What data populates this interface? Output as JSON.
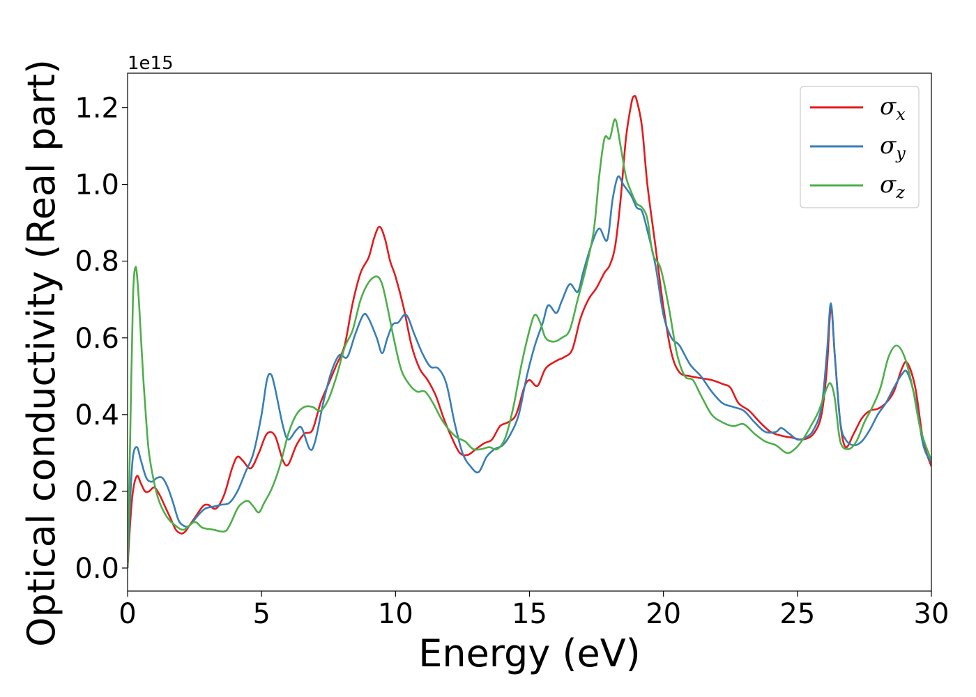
{
  "chart_data": {
    "type": "line",
    "xlabel": "Energy (eV)",
    "ylabel": "Optical conductivity (Real part)",
    "y_offset_label": "1e15",
    "xlim": [
      0,
      30
    ],
    "ylim": [
      -0.06,
      1.29
    ],
    "xticks": [
      0,
      5,
      10,
      15,
      20,
      25,
      30
    ],
    "xtick_labels": [
      "0",
      "5",
      "10",
      "15",
      "20",
      "25",
      "30"
    ],
    "yticks": [
      0.0,
      0.2,
      0.4,
      0.6,
      0.8,
      1.0,
      1.2
    ],
    "ytick_labels": [
      "0.0",
      "0.2",
      "0.4",
      "0.6",
      "0.8",
      "1.0",
      "1.2"
    ],
    "grid": false,
    "legend_position": "top-right",
    "series": [
      {
        "name": "σx",
        "symbol": "σ",
        "subscript": "x",
        "color": "#e41a1c",
        "x": [
          0,
          0.1,
          0.2,
          0.35,
          0.5,
          0.65,
          0.8,
          1.0,
          1.2,
          1.4,
          1.6,
          1.8,
          2.0,
          2.15,
          2.3,
          2.5,
          2.8,
          3.0,
          3.3,
          3.6,
          3.9,
          4.1,
          4.3,
          4.6,
          4.9,
          5.2,
          5.5,
          5.8,
          6.0,
          6.3,
          6.6,
          6.9,
          7.2,
          7.5,
          7.8,
          8.1,
          8.4,
          8.7,
          9.0,
          9.2,
          9.4,
          9.6,
          9.8,
          10.0,
          10.3,
          10.6,
          10.9,
          11.2,
          11.5,
          11.8,
          12.1,
          12.4,
          12.7,
          13.0,
          13.3,
          13.6,
          13.9,
          14.2,
          14.5,
          14.8,
          15.0,
          15.3,
          15.6,
          16.0,
          16.3,
          16.6,
          16.9,
          17.2,
          17.5,
          17.8,
          18.0,
          18.2,
          18.4,
          18.6,
          18.8,
          18.9,
          19.0,
          19.2,
          19.4,
          19.7,
          20.0,
          20.3,
          20.6,
          21.0,
          21.4,
          21.8,
          22.2,
          22.5,
          22.8,
          23.2,
          23.6,
          24.0,
          24.4,
          24.8,
          25.2,
          25.6,
          25.9,
          26.1,
          26.25,
          26.4,
          26.6,
          26.8,
          27.1,
          27.4,
          27.7,
          28.0,
          28.3,
          28.6,
          28.9,
          29.1,
          29.4,
          29.7,
          30.0
        ],
        "y": [
          0.0,
          0.12,
          0.2,
          0.24,
          0.22,
          0.2,
          0.2,
          0.21,
          0.19,
          0.16,
          0.13,
          0.1,
          0.09,
          0.095,
          0.11,
          0.13,
          0.16,
          0.165,
          0.155,
          0.19,
          0.26,
          0.29,
          0.28,
          0.26,
          0.3,
          0.35,
          0.345,
          0.28,
          0.27,
          0.32,
          0.35,
          0.36,
          0.43,
          0.48,
          0.53,
          0.58,
          0.69,
          0.77,
          0.81,
          0.86,
          0.89,
          0.86,
          0.8,
          0.76,
          0.68,
          0.58,
          0.52,
          0.49,
          0.45,
          0.39,
          0.34,
          0.3,
          0.295,
          0.31,
          0.325,
          0.335,
          0.37,
          0.38,
          0.4,
          0.47,
          0.49,
          0.475,
          0.52,
          0.54,
          0.55,
          0.57,
          0.65,
          0.7,
          0.73,
          0.77,
          0.79,
          0.84,
          0.96,
          1.12,
          1.21,
          1.23,
          1.22,
          1.15,
          1.0,
          0.84,
          0.68,
          0.56,
          0.51,
          0.5,
          0.495,
          0.49,
          0.48,
          0.47,
          0.43,
          0.41,
          0.38,
          0.355,
          0.345,
          0.34,
          0.335,
          0.35,
          0.4,
          0.52,
          0.68,
          0.55,
          0.38,
          0.315,
          0.35,
          0.39,
          0.41,
          0.415,
          0.43,
          0.46,
          0.52,
          0.535,
          0.47,
          0.33,
          0.265
        ]
      },
      {
        "name": "σy",
        "symbol": "σ",
        "subscript": "y",
        "color": "#377eb8",
        "x": [
          0,
          0.1,
          0.2,
          0.35,
          0.5,
          0.7,
          0.9,
          1.1,
          1.3,
          1.5,
          1.7,
          1.9,
          2.1,
          2.3,
          2.6,
          2.9,
          3.2,
          3.5,
          3.8,
          4.1,
          4.4,
          4.7,
          5.0,
          5.2,
          5.35,
          5.5,
          5.8,
          6.0,
          6.3,
          6.5,
          6.8,
          7.0,
          7.3,
          7.6,
          7.9,
          8.2,
          8.5,
          8.8,
          9.0,
          9.3,
          9.5,
          9.7,
          9.9,
          10.1,
          10.4,
          10.7,
          11.0,
          11.3,
          11.6,
          11.9,
          12.2,
          12.5,
          12.8,
          13.1,
          13.4,
          13.7,
          14.0,
          14.3,
          14.6,
          14.9,
          15.2,
          15.5,
          15.7,
          16.0,
          16.2,
          16.5,
          16.8,
          17.0,
          17.3,
          17.6,
          17.9,
          18.1,
          18.3,
          18.5,
          18.8,
          19.0,
          19.2,
          19.4,
          19.7,
          20.0,
          20.3,
          20.6,
          21.0,
          21.4,
          21.8,
          22.2,
          22.6,
          23.0,
          23.4,
          23.8,
          24.2,
          24.4,
          24.7,
          25.0,
          25.3,
          25.6,
          25.9,
          26.1,
          26.25,
          26.4,
          26.6,
          26.8,
          27.1,
          27.4,
          27.7,
          28.0,
          28.3,
          28.6,
          28.9,
          29.1,
          29.4,
          29.7,
          30.0
        ],
        "y": [
          0.0,
          0.18,
          0.29,
          0.315,
          0.28,
          0.235,
          0.225,
          0.235,
          0.235,
          0.21,
          0.17,
          0.125,
          0.11,
          0.11,
          0.135,
          0.155,
          0.16,
          0.165,
          0.17,
          0.2,
          0.25,
          0.3,
          0.4,
          0.49,
          0.505,
          0.47,
          0.37,
          0.335,
          0.36,
          0.365,
          0.31,
          0.33,
          0.43,
          0.51,
          0.555,
          0.55,
          0.61,
          0.66,
          0.65,
          0.6,
          0.56,
          0.6,
          0.635,
          0.64,
          0.66,
          0.61,
          0.56,
          0.525,
          0.52,
          0.48,
          0.38,
          0.3,
          0.265,
          0.25,
          0.29,
          0.31,
          0.32,
          0.35,
          0.4,
          0.5,
          0.58,
          0.64,
          0.685,
          0.665,
          0.695,
          0.74,
          0.72,
          0.77,
          0.84,
          0.885,
          0.855,
          0.96,
          1.02,
          1.0,
          0.97,
          0.94,
          0.93,
          0.88,
          0.79,
          0.66,
          0.6,
          0.58,
          0.53,
          0.5,
          0.46,
          0.43,
          0.42,
          0.41,
          0.38,
          0.355,
          0.355,
          0.365,
          0.35,
          0.335,
          0.34,
          0.36,
          0.42,
          0.56,
          0.69,
          0.55,
          0.38,
          0.335,
          0.32,
          0.33,
          0.36,
          0.4,
          0.43,
          0.47,
          0.505,
          0.51,
          0.44,
          0.32,
          0.275
        ]
      },
      {
        "name": "σz",
        "symbol": "σ",
        "subscript": "z",
        "color": "#4daf4a",
        "x": [
          0,
          0.1,
          0.2,
          0.3,
          0.4,
          0.5,
          0.6,
          0.7,
          0.8,
          1.0,
          1.2,
          1.5,
          1.8,
          2.1,
          2.5,
          2.8,
          3.2,
          3.6,
          3.8,
          4.1,
          4.3,
          4.5,
          4.7,
          4.9,
          5.1,
          5.4,
          5.7,
          6.0,
          6.3,
          6.6,
          6.9,
          7.2,
          7.5,
          7.8,
          8.1,
          8.4,
          8.7,
          9.0,
          9.3,
          9.5,
          9.7,
          9.9,
          10.2,
          10.5,
          10.8,
          11.1,
          11.4,
          11.7,
          12.0,
          12.3,
          12.6,
          12.9,
          13.2,
          13.5,
          13.8,
          14.1,
          14.4,
          14.7,
          15.0,
          15.2,
          15.4,
          15.6,
          15.9,
          16.2,
          16.5,
          16.8,
          17.1,
          17.4,
          17.6,
          17.8,
          18.0,
          18.2,
          18.4,
          18.6,
          18.8,
          19.0,
          19.2,
          19.4,
          19.6,
          19.9,
          20.2,
          20.5,
          20.8,
          21.1,
          21.4,
          21.8,
          22.2,
          22.6,
          23.0,
          23.4,
          23.8,
          24.2,
          24.6,
          24.9,
          25.2,
          25.5,
          25.8,
          26.1,
          26.25,
          26.4,
          26.6,
          26.9,
          27.2,
          27.5,
          27.8,
          28.1,
          28.4,
          28.7,
          29.0,
          29.3,
          29.6,
          30.0
        ],
        "y": [
          0.0,
          0.35,
          0.7,
          0.785,
          0.72,
          0.6,
          0.48,
          0.38,
          0.3,
          0.22,
          0.17,
          0.13,
          0.11,
          0.1,
          0.12,
          0.105,
          0.1,
          0.095,
          0.11,
          0.155,
          0.17,
          0.175,
          0.16,
          0.145,
          0.17,
          0.21,
          0.27,
          0.35,
          0.4,
          0.42,
          0.42,
          0.41,
          0.44,
          0.5,
          0.575,
          0.62,
          0.7,
          0.745,
          0.76,
          0.74,
          0.68,
          0.61,
          0.52,
          0.48,
          0.46,
          0.46,
          0.43,
          0.39,
          0.36,
          0.34,
          0.33,
          0.31,
          0.31,
          0.315,
          0.31,
          0.34,
          0.42,
          0.53,
          0.62,
          0.66,
          0.64,
          0.6,
          0.59,
          0.6,
          0.62,
          0.7,
          0.78,
          0.88,
          1.02,
          1.12,
          1.12,
          1.17,
          1.1,
          1.02,
          0.98,
          0.95,
          0.94,
          0.91,
          0.82,
          0.78,
          0.68,
          0.56,
          0.5,
          0.49,
          0.45,
          0.4,
          0.38,
          0.37,
          0.375,
          0.35,
          0.33,
          0.32,
          0.3,
          0.31,
          0.335,
          0.37,
          0.41,
          0.47,
          0.48,
          0.44,
          0.33,
          0.31,
          0.33,
          0.38,
          0.42,
          0.47,
          0.55,
          0.58,
          0.55,
          0.47,
          0.36,
          0.28
        ]
      }
    ]
  }
}
